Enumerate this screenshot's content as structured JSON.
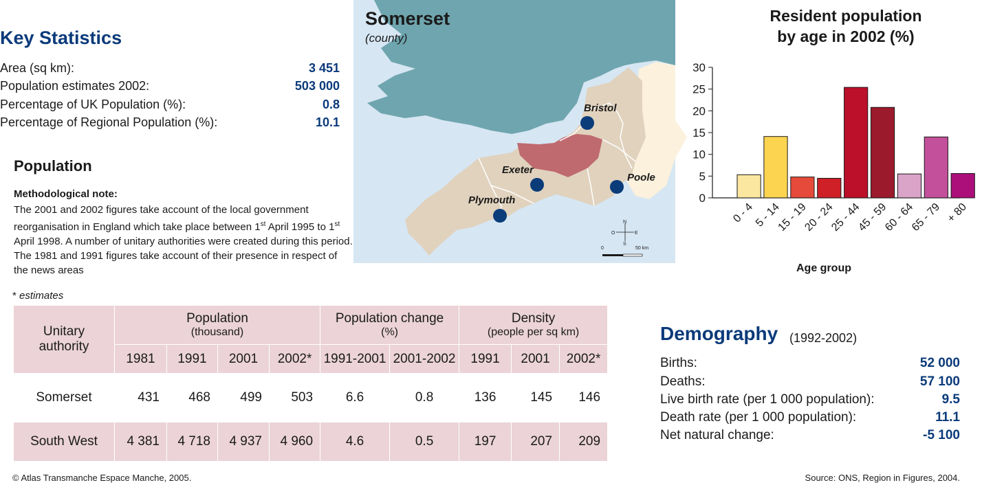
{
  "key_statistics": {
    "title": "Key Statistics",
    "rows": [
      {
        "label": "Area (sq km):",
        "value": "3 451"
      },
      {
        "label": "Population estimates 2002:",
        "value": "503 000"
      },
      {
        "label": "Percentage of UK Population (%):",
        "value": "0.8"
      },
      {
        "label": "Percentage of Regional Population (%):",
        "value": "10.1"
      }
    ]
  },
  "population": {
    "title": "Population",
    "method_label": "Methodological note:",
    "method_text_1": "The 2001 and 2002 figures take account of the local government reorganisation in England which take place between 1",
    "method_sup_1": "st",
    "method_text_2": " April 1995 to 1",
    "method_sup_2": "st",
    "method_text_3": " April 1998. A number of unitary authorities were created during this period. The 1981 and 1991 figures take account of their presence in respect of the news areas",
    "estimates_star": "* ",
    "estimates_word": "estimates"
  },
  "map": {
    "title": "Somerset",
    "subtitle": "(county)",
    "cities": [
      "Bristol",
      "Exeter",
      "Poole",
      "Plymouth"
    ],
    "scale_zero": "0",
    "scale_end": "50 km",
    "compass": {
      "n": "N",
      "s": "S",
      "e": "E",
      "o": "O"
    },
    "colors": {
      "sea": "#d6e6f3",
      "wales": "#6fa5ae",
      "southwest": "#e0d2bd",
      "somerset": "#bf6a6f",
      "neighbour": "#fbf1dd",
      "city": "#0b3c7a"
    }
  },
  "table": {
    "header_authority": "Unitary authority",
    "header_population": "Population",
    "header_population_unit": "(thousand)",
    "header_change": "Population change",
    "header_change_unit": "(%)",
    "header_density": "Density",
    "header_density_unit": "(people per sq km)",
    "columns": [
      "1981",
      "1991",
      "2001",
      "2002*",
      "1991-2001",
      "2001-2002",
      "1991",
      "2001",
      "2002*"
    ],
    "rows": [
      {
        "name": "Somerset",
        "cells": [
          "431",
          "468",
          "499",
          "503",
          "6.6",
          "0.8",
          "136",
          "145",
          "146"
        ]
      },
      {
        "name": "South West",
        "cells": [
          "4 381",
          "4 718",
          "4 937",
          "4 960",
          "4.6",
          "0.5",
          "197",
          "207",
          "209"
        ]
      }
    ]
  },
  "chart_data": {
    "type": "bar",
    "title": "Resident population by age in 2002 (%)",
    "xlabel": "Age group",
    "ylabel": "",
    "ylim": [
      0,
      30
    ],
    "yticks": [
      0,
      5,
      10,
      15,
      20,
      25,
      30
    ],
    "categories": [
      "0 - 4",
      "5 - 14",
      "15 - 19",
      "20 - 24",
      "25 - 44",
      "45 - 59",
      "60 - 64",
      "65 - 79",
      "+ 80"
    ],
    "values": [
      5.3,
      14.1,
      4.8,
      4.5,
      25.4,
      20.8,
      5.5,
      14.0,
      5.6
    ],
    "colors": [
      "#fbe7a0",
      "#fcd450",
      "#e54a3a",
      "#cf2027",
      "#bb0f2a",
      "#9b1a2b",
      "#daa3c8",
      "#c2509a",
      "#ac0e7a"
    ],
    "grid": false
  },
  "demography": {
    "title": "Demography",
    "years": "(1992-2002)",
    "rows": [
      {
        "label": "Births:",
        "value": "52 000"
      },
      {
        "label": "Deaths:",
        "value": "57 100"
      },
      {
        "label": "Live birth rate (per 1 000 population):",
        "value": "9.5"
      },
      {
        "label": "Death rate (per 1 000 population):",
        "value": "11.1"
      },
      {
        "label": "Net natural change:",
        "value": "-5 100"
      }
    ]
  },
  "footer": {
    "copyright": "© Atlas Transmanche Espace Manche, 2005.",
    "source": "Source: ONS, Region in Figures, 2004."
  }
}
